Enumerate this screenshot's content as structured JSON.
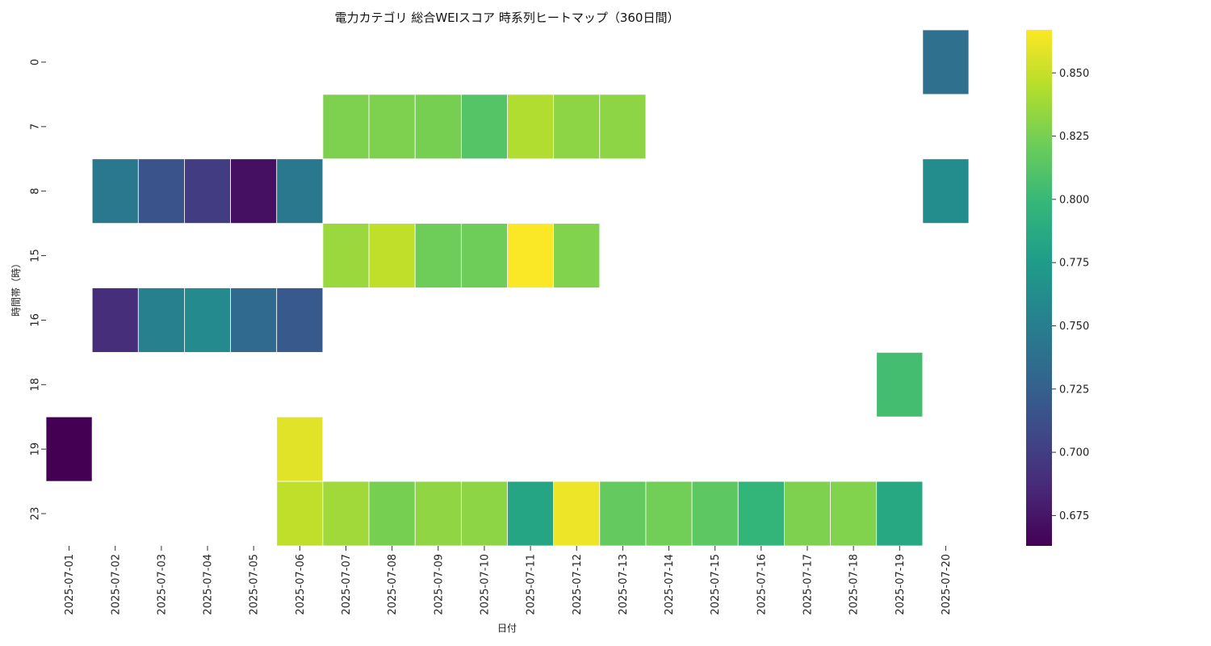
{
  "chart_data": {
    "type": "heatmap",
    "title": "電力カテゴリ 総合WEIスコア 時系列ヒートマップ（360日間）",
    "xlabel": "日付",
    "ylabel": "時間帯（時）",
    "x": [
      "2025-07-01",
      "2025-07-02",
      "2025-07-03",
      "2025-07-04",
      "2025-07-05",
      "2025-07-06",
      "2025-07-07",
      "2025-07-08",
      "2025-07-09",
      "2025-07-10",
      "2025-07-11",
      "2025-07-12",
      "2025-07-13",
      "2025-07-14",
      "2025-07-15",
      "2025-07-16",
      "2025-07-17",
      "2025-07-18",
      "2025-07-19",
      "2025-07-20"
    ],
    "y": [
      "0",
      "7",
      "8",
      "15",
      "16",
      "18",
      "19",
      "23"
    ],
    "values": [
      [
        null,
        null,
        null,
        null,
        null,
        null,
        null,
        null,
        null,
        null,
        null,
        null,
        null,
        null,
        null,
        null,
        null,
        null,
        null,
        0.738
      ],
      [
        null,
        null,
        null,
        null,
        null,
        null,
        0.827,
        0.827,
        0.825,
        0.812,
        0.843,
        0.832,
        0.832,
        null,
        null,
        null,
        null,
        null,
        null,
        null
      ],
      [
        null,
        0.745,
        0.716,
        0.7,
        0.672,
        0.745,
        null,
        null,
        null,
        null,
        null,
        null,
        null,
        null,
        null,
        null,
        null,
        null,
        null,
        0.762
      ],
      [
        null,
        null,
        null,
        null,
        null,
        null,
        0.836,
        0.848,
        0.822,
        0.822,
        0.866,
        0.828,
        null,
        null,
        null,
        null,
        null,
        null,
        null,
        null
      ],
      [
        null,
        0.69,
        0.752,
        0.76,
        0.733,
        0.72,
        null,
        null,
        null,
        null,
        null,
        null,
        null,
        null,
        null,
        null,
        null,
        null,
        null,
        null
      ],
      [
        null,
        null,
        null,
        null,
        null,
        null,
        null,
        null,
        null,
        null,
        null,
        null,
        null,
        null,
        null,
        null,
        null,
        null,
        0.805,
        null
      ],
      [
        0.663,
        null,
        null,
        null,
        null,
        0.858,
        null,
        null,
        null,
        null,
        null,
        null,
        null,
        null,
        null,
        null,
        null,
        null,
        null,
        null
      ],
      [
        null,
        null,
        null,
        null,
        null,
        0.848,
        0.838,
        0.825,
        0.833,
        0.832,
        0.783,
        0.862,
        0.818,
        0.823,
        0.815,
        0.797,
        0.827,
        0.828,
        0.785,
        null
      ]
    ],
    "vmin": 0.663,
    "vmax": 0.867,
    "colormap": "viridis",
    "colorbar_ticks": [
      0.675,
      0.7,
      0.725,
      0.75,
      0.775,
      0.8,
      0.825,
      0.85
    ],
    "colorbar_tick_labels": [
      "0.675",
      "0.700",
      "0.725",
      "0.750",
      "0.775",
      "0.800",
      "0.825",
      "0.850"
    ]
  }
}
